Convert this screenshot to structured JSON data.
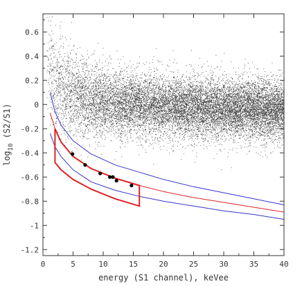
{
  "chart_data": {
    "type": "scatter",
    "title": "",
    "xlabel": "energy (S1 channel), keVee",
    "ylabel_base": "log",
    "ylabel_sub": "10",
    "ylabel_rest": " (S2/S1)",
    "xlim": [
      0,
      40
    ],
    "ylim": [
      -1.25,
      0.75
    ],
    "xticks": [
      0,
      5,
      10,
      15,
      20,
      25,
      30,
      35,
      40
    ],
    "yticks": [
      0.6,
      0.4,
      0.2,
      0,
      -0.2,
      -0.4,
      -0.6,
      -0.8,
      -1,
      -1.2
    ],
    "grid": false,
    "background_cloud": {
      "description_color": "#000000",
      "band_center_at_low_energy": 0.1,
      "band_center_at_high_energy": -0.05
    },
    "events": {
      "color": "#000000",
      "points": [
        {
          "x": 4.9,
          "y": -0.41
        },
        {
          "x": 7.0,
          "y": -0.5
        },
        {
          "x": 9.5,
          "y": -0.57
        },
        {
          "x": 11.1,
          "y": -0.6
        },
        {
          "x": 11.6,
          "y": -0.6
        },
        {
          "x": 12.2,
          "y": -0.63
        },
        {
          "x": 14.7,
          "y": -0.67
        }
      ]
    },
    "curves": [
      {
        "color": "#3333cc",
        "points": [
          [
            1.2,
            0.1
          ],
          [
            2,
            -0.06
          ],
          [
            3,
            -0.17
          ],
          [
            5,
            -0.3
          ],
          [
            8,
            -0.41
          ],
          [
            12,
            -0.5
          ],
          [
            16,
            -0.56
          ],
          [
            20,
            -0.62
          ],
          [
            25,
            -0.68
          ],
          [
            30,
            -0.73
          ],
          [
            35,
            -0.78
          ],
          [
            40,
            -0.83
          ]
        ]
      },
      {
        "color": "#dd2222",
        "points": [
          [
            1.2,
            -0.07
          ],
          [
            2,
            -0.2
          ],
          [
            3,
            -0.31
          ],
          [
            5,
            -0.43
          ],
          [
            8,
            -0.53
          ],
          [
            12,
            -0.61
          ],
          [
            16,
            -0.67
          ],
          [
            20,
            -0.72
          ],
          [
            25,
            -0.77
          ],
          [
            30,
            -0.81
          ],
          [
            35,
            -0.85
          ],
          [
            40,
            -0.89
          ]
        ]
      },
      {
        "color": "#3333cc",
        "points": [
          [
            1.2,
            -0.24
          ],
          [
            2,
            -0.35
          ],
          [
            3,
            -0.43
          ],
          [
            5,
            -0.54
          ],
          [
            8,
            -0.64
          ],
          [
            12,
            -0.71
          ],
          [
            16,
            -0.76
          ],
          [
            20,
            -0.8
          ],
          [
            25,
            -0.84
          ],
          [
            30,
            -0.88
          ],
          [
            35,
            -0.91
          ],
          [
            40,
            -0.95
          ]
        ]
      }
    ],
    "acceptance_box": {
      "color": "#dd2222",
      "upper_edge": [
        [
          2,
          -0.2
        ],
        [
          3,
          -0.31
        ],
        [
          5,
          -0.43
        ],
        [
          8,
          -0.53
        ],
        [
          12,
          -0.61
        ],
        [
          16,
          -0.67
        ]
      ],
      "lower_edge": [
        [
          2,
          -0.48
        ],
        [
          3,
          -0.54
        ],
        [
          5,
          -0.62
        ],
        [
          8,
          -0.7
        ],
        [
          12,
          -0.78
        ],
        [
          16,
          -0.84
        ]
      ]
    }
  }
}
